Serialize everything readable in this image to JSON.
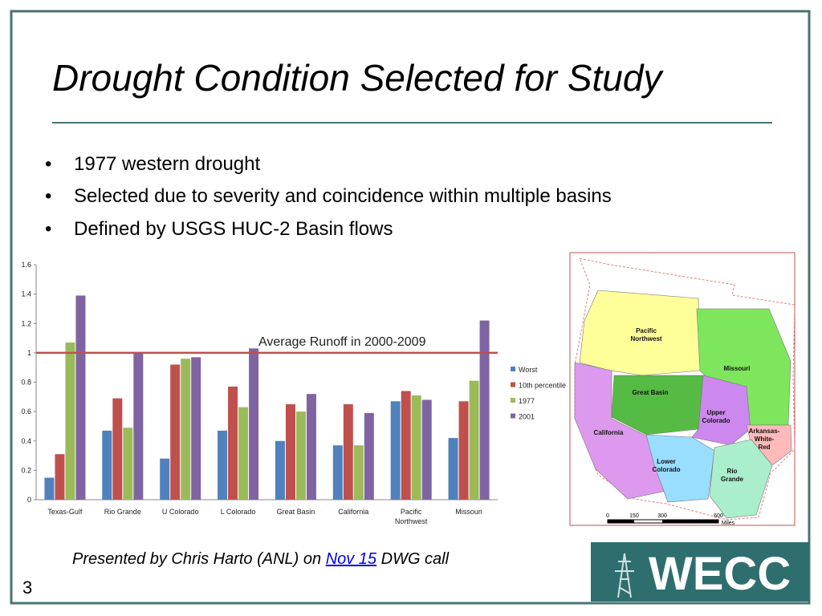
{
  "title": "Drought Condition Selected for Study",
  "bullets": [
    "1977 western drought",
    "Selected due to severity and coincidence within multiple basins",
    "Defined by USGS HUC-2 Basin flows"
  ],
  "chart_data": {
    "type": "bar",
    "categories": [
      "Texas-Gulf",
      "Rio Grande",
      "U Colorado",
      "L Colorado",
      "Great Basin",
      "California",
      "Pacific Northwest",
      "Missouri"
    ],
    "series": [
      {
        "name": "Worst",
        "color": "#4f81bd",
        "values": [
          0.15,
          0.47,
          0.28,
          0.47,
          0.4,
          0.37,
          0.67,
          0.42
        ]
      },
      {
        "name": "10th percentile",
        "color": "#c0504d",
        "values": [
          0.31,
          0.69,
          0.92,
          0.77,
          0.65,
          0.65,
          0.74,
          0.67
        ]
      },
      {
        "name": "1977",
        "color": "#9bbb59",
        "values": [
          1.07,
          0.49,
          0.96,
          0.63,
          0.6,
          0.37,
          0.71,
          0.81
        ]
      },
      {
        "name": "2001",
        "color": "#8064a2",
        "values": [
          1.39,
          1.0,
          0.97,
          1.03,
          0.72,
          0.59,
          0.68,
          1.22
        ]
      }
    ],
    "ylim": [
      0,
      1.6
    ],
    "yticks": [
      0,
      0.2,
      0.4,
      0.6,
      0.8,
      1,
      1.2,
      1.4,
      1.6
    ],
    "reference_line": {
      "value": 1,
      "label": "Average Runoff in 2000-2009",
      "color": "#c0504d"
    },
    "legend": "right"
  },
  "map": {
    "labels": [
      [
        "Pacific",
        "Northwest"
      ],
      [
        "Missouri"
      ],
      [
        "Great Basin"
      ],
      [
        "California"
      ],
      [
        "Upper",
        "Colorado"
      ],
      [
        "Lower",
        "Colorado"
      ],
      [
        "Arkansas-",
        "White-",
        "Red"
      ],
      [
        "Rio",
        "Grande"
      ]
    ],
    "scale": [
      "0",
      "150",
      "300",
      "600",
      "Miles"
    ]
  },
  "footer": {
    "prefix": "Presented by Chris Harto (ANL) on ",
    "link": "Nov 15",
    "suffix": " DWG call"
  },
  "page_number": "3",
  "logo": "WECC"
}
